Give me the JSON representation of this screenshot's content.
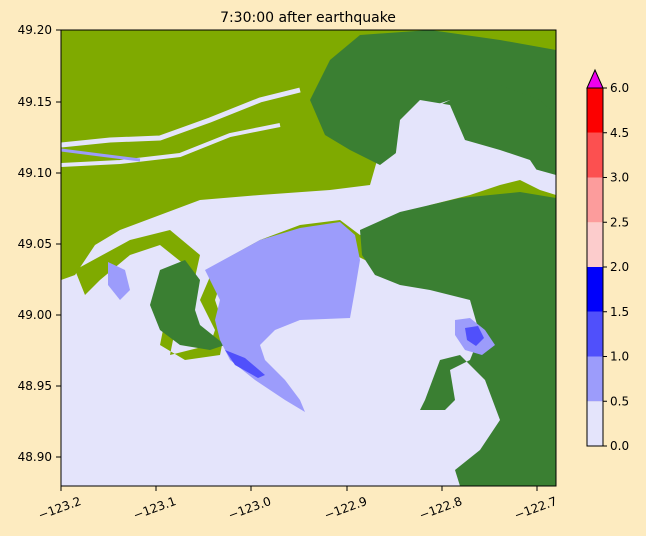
{
  "title": "7:30:00 after earthquake",
  "map": {
    "x_ticks": [
      "−123.2",
      "−123.1",
      "−123.0",
      "−122.9",
      "−122.8",
      "−122.7"
    ],
    "y_ticks": [
      "49.20",
      "49.15",
      "49.10",
      "49.05",
      "49.00",
      "48.95",
      "48.90"
    ],
    "land_colors": {
      "lowland": "#7faa00",
      "upland": "#3a7f32",
      "background_water": "#e4e4fb"
    }
  },
  "colorbar": {
    "ticks": [
      "0.0",
      "0.5",
      "1.0",
      "1.5",
      "2.0",
      "2.5",
      "3.0",
      "4.5",
      "6.0"
    ],
    "levels": [
      0,
      0.5,
      1.0,
      1.5,
      2.0,
      2.5,
      3.0,
      4.5,
      6.0
    ],
    "colors": [
      "#e4e4fb",
      "#9c9cfb",
      "#5050fb",
      "#0000fb",
      "#fccccc",
      "#fc9c9c",
      "#fc5050",
      "#fc0000"
    ],
    "extend_color": "#ee00ee"
  }
}
